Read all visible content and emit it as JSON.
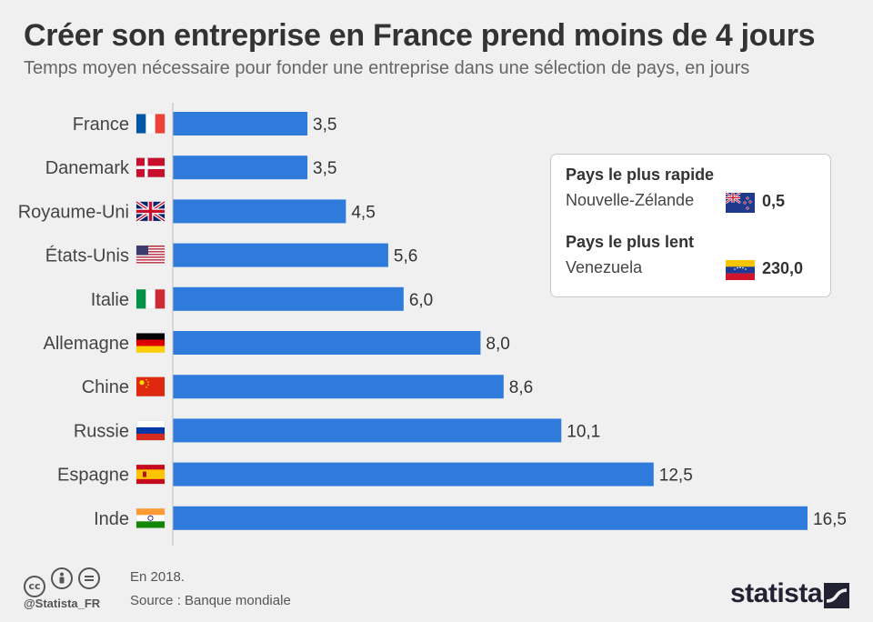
{
  "header": {
    "title": "Créer son entreprise en France prend moins de 4 jours",
    "subtitle": "Temps moyen nécessaire pour fonder une entreprise dans une sélection de pays, en jours"
  },
  "chart_data": {
    "type": "bar",
    "orientation": "horizontal",
    "categories": [
      "France",
      "Danemark",
      "Royaume-Uni",
      "États-Unis",
      "Italie",
      "Allemagne",
      "Chine",
      "Russie",
      "Espagne",
      "Inde"
    ],
    "values": [
      3.5,
      3.5,
      4.5,
      5.6,
      6.0,
      8.0,
      8.6,
      10.1,
      12.5,
      16.5
    ],
    "value_labels": [
      "3,5",
      "3,5",
      "4,5",
      "5,6",
      "6,0",
      "8,0",
      "8,6",
      "10,1",
      "12,5",
      "16,5"
    ],
    "flags": [
      "flag-france",
      "flag-denmark",
      "flag-uk",
      "flag-usa",
      "flag-italy",
      "flag-germany",
      "flag-china",
      "flag-russia",
      "flag-spain",
      "flag-india"
    ],
    "xlim": [
      0,
      16.5
    ],
    "bar_color": "#2e7bdc",
    "grid": false,
    "title": "Créer son entreprise en France prend moins de 4 jours",
    "subtitle": "Temps moyen nécessaire pour fonder une entreprise dans une sélection de pays, en jours"
  },
  "infobox": {
    "fastest_heading": "Pays le plus rapide",
    "fastest_country": "Nouvelle-Zélande",
    "fastest_flag": "flag-new-zealand",
    "fastest_value": "0,5",
    "slowest_heading": "Pays le plus lent",
    "slowest_country": "Venezuela",
    "slowest_flag": "flag-venezuela",
    "slowest_value": "230,0"
  },
  "footer": {
    "handle": "@Statista_FR",
    "note": "En 2018.",
    "source": "Source : Banque mondiale",
    "brand": "statista"
  }
}
